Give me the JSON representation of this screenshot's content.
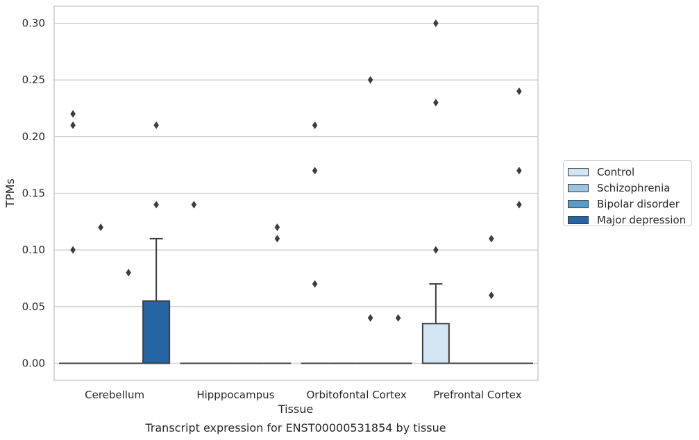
{
  "chart_data": {
    "type": "box",
    "xlabel": "Tissue",
    "ylabel": "TPMs",
    "caption": "Transcript expression for ENST00000531854 by tissue",
    "ylim": [
      -0.015,
      0.315
    ],
    "yticks": [
      0.0,
      0.05,
      0.1,
      0.15,
      0.2,
      0.25,
      0.3
    ],
    "ytick_labels": [
      "0.00",
      "0.05",
      "0.10",
      "0.15",
      "0.20",
      "0.25",
      "0.30"
    ],
    "grid": true,
    "legend_position": "right",
    "categories": [
      "Cerebellum",
      "Hipppocampus",
      "Orbitofontal Cortex",
      "Prefrontal Cortex"
    ],
    "series": [
      {
        "name": "Control",
        "color": "#d3e4f3",
        "boxes": [
          {
            "q1": 0,
            "median": 0,
            "q3": 0,
            "whisker_low": 0,
            "whisker_high": 0,
            "outliers": [
              0.22,
              0.21,
              0.1
            ]
          },
          {
            "q1": 0,
            "median": 0,
            "q3": 0,
            "whisker_low": 0,
            "whisker_high": 0,
            "outliers": [
              0.14
            ]
          },
          {
            "q1": 0,
            "median": 0,
            "q3": 0,
            "whisker_low": 0,
            "whisker_high": 0,
            "outliers": [
              0.21,
              0.17,
              0.07
            ]
          },
          {
            "q1": 0,
            "median": 0,
            "q3": 0.035,
            "whisker_low": 0,
            "whisker_high": 0.07,
            "outliers": [
              0.3,
              0.23,
              0.1
            ]
          }
        ]
      },
      {
        "name": "Schizophrenia",
        "color": "#9dc4de",
        "boxes": [
          {
            "q1": 0,
            "median": 0,
            "q3": 0,
            "whisker_low": 0,
            "whisker_high": 0,
            "outliers": [
              0.12
            ]
          },
          {
            "q1": 0,
            "median": 0,
            "q3": 0,
            "whisker_low": 0,
            "whisker_high": 0,
            "outliers": []
          },
          {
            "q1": 0,
            "median": 0,
            "q3": 0,
            "whisker_low": 0,
            "whisker_high": 0,
            "outliers": []
          },
          {
            "q1": 0,
            "median": 0,
            "q3": 0,
            "whisker_low": 0,
            "whisker_high": 0,
            "outliers": []
          }
        ]
      },
      {
        "name": "Bipolar disorder",
        "color": "#5a9ac6",
        "boxes": [
          {
            "q1": 0,
            "median": 0,
            "q3": 0,
            "whisker_low": 0,
            "whisker_high": 0,
            "outliers": [
              0.08
            ]
          },
          {
            "q1": 0,
            "median": 0,
            "q3": 0,
            "whisker_low": 0,
            "whisker_high": 0,
            "outliers": []
          },
          {
            "q1": 0,
            "median": 0,
            "q3": 0,
            "whisker_low": 0,
            "whisker_high": 0,
            "outliers": [
              0.25,
              0.04
            ]
          },
          {
            "q1": 0,
            "median": 0,
            "q3": 0,
            "whisker_low": 0,
            "whisker_high": 0,
            "outliers": [
              0.11,
              0.06
            ]
          }
        ]
      },
      {
        "name": "Major depression",
        "color": "#2565a4",
        "boxes": [
          {
            "q1": 0,
            "median": 0,
            "q3": 0.055,
            "whisker_low": 0,
            "whisker_high": 0.11,
            "outliers": [
              0.21,
              0.14
            ]
          },
          {
            "q1": 0,
            "median": 0,
            "q3": 0,
            "whisker_low": 0,
            "whisker_high": 0,
            "outliers": [
              0.12,
              0.11
            ]
          },
          {
            "q1": 0,
            "median": 0,
            "q3": 0,
            "whisker_low": 0,
            "whisker_high": 0,
            "outliers": [
              0.04
            ]
          },
          {
            "q1": 0,
            "median": 0,
            "q3": 0,
            "whisker_low": 0,
            "whisker_high": 0,
            "outliers": [
              0.24,
              0.17,
              0.14
            ]
          }
        ]
      }
    ]
  }
}
